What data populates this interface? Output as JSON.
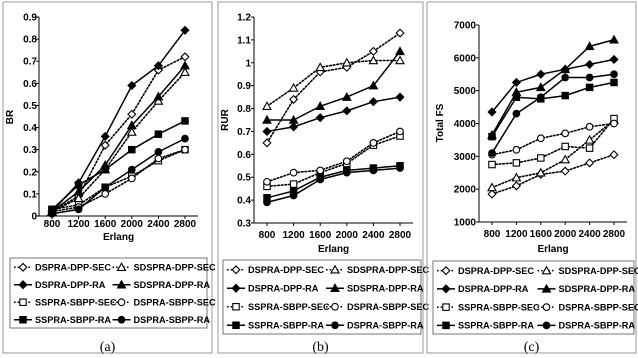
{
  "colors": {
    "line": "#000000",
    "frame": "#9a9a9a",
    "legend_frame": "#555555",
    "background": "#ffffff"
  },
  "chart_data": [
    {
      "type": "line",
      "caption": "(a)",
      "xlabel": "Erlang",
      "ylabel": "BR",
      "x": [
        800,
        1200,
        1600,
        2000,
        2400,
        2800
      ],
      "ylim": [
        0,
        0.9
      ],
      "yticks": [
        "0",
        "0.1",
        "0.2",
        "0.3",
        "0.4",
        "0.5",
        "0.6",
        "0.7",
        "0.8",
        "0.9"
      ],
      "series": [
        {
          "name": "DSPRA-DPP-SEC",
          "marker": "diamond-open",
          "dash": "dot",
          "values": [
            0.02,
            0.09,
            0.32,
            0.46,
            0.66,
            0.72
          ]
        },
        {
          "name": "SDSPRA-DPP-SEC",
          "marker": "triangle-open",
          "dash": "dot",
          "values": [
            0.02,
            0.08,
            0.21,
            0.38,
            0.52,
            0.65
          ]
        },
        {
          "name": "DSPRA-DPP-RA",
          "marker": "diamond",
          "dash": "solid",
          "values": [
            0.02,
            0.15,
            0.36,
            0.59,
            0.68,
            0.84
          ]
        },
        {
          "name": "SDSPRA-DPP-RA",
          "marker": "triangle",
          "dash": "solid",
          "values": [
            0.02,
            0.11,
            0.23,
            0.41,
            0.54,
            0.68
          ]
        },
        {
          "name": "SSPRA-SBPP-SEC",
          "marker": "square-open",
          "dash": "dot",
          "values": [
            0.03,
            0.05,
            0.13,
            0.18,
            0.25,
            0.3
          ]
        },
        {
          "name": "DSPRA-SBPP-SEC",
          "marker": "circle-open",
          "dash": "dot",
          "values": [
            0.02,
            0.04,
            0.1,
            0.17,
            0.26,
            0.3
          ]
        },
        {
          "name": "SSPRA-SBPP-RA",
          "marker": "square",
          "dash": "solid",
          "values": [
            0.03,
            0.14,
            0.21,
            0.3,
            0.37,
            0.43
          ]
        },
        {
          "name": "DSPRA-SBPP-RA",
          "marker": "circle",
          "dash": "solid",
          "values": [
            0.01,
            0.03,
            0.13,
            0.21,
            0.29,
            0.35
          ]
        }
      ]
    },
    {
      "type": "line",
      "caption": "(b)",
      "xlabel": "Erlang",
      "ylabel": "RUR",
      "x": [
        800,
        1200,
        1600,
        2000,
        2400,
        2800
      ],
      "ylim": [
        0.3,
        1.2
      ],
      "yticks": [
        "0.3",
        "0.4",
        "0.5",
        "0.6",
        "0.7",
        "0.8",
        "0.9",
        "1",
        "1.1",
        "1.2"
      ],
      "series": [
        {
          "name": "DSPRA-DPP-SEC",
          "marker": "diamond-open",
          "dash": "dot",
          "values": [
            0.65,
            0.84,
            0.96,
            0.98,
            1.05,
            1.13
          ]
        },
        {
          "name": "SDSPRA-DPP-SEC",
          "marker": "triangle-open",
          "dash": "dot",
          "values": [
            0.81,
            0.89,
            0.98,
            1.0,
            1.01,
            1.01
          ]
        },
        {
          "name": "DSPRA-DPP-RA",
          "marker": "diamond",
          "dash": "solid",
          "values": [
            0.7,
            0.72,
            0.76,
            0.79,
            0.83,
            0.85
          ]
        },
        {
          "name": "SDSPRA-DPP-RA",
          "marker": "triangle",
          "dash": "solid",
          "values": [
            0.75,
            0.75,
            0.81,
            0.85,
            0.9,
            1.05
          ]
        },
        {
          "name": "SSPRA-SBPP-SEC",
          "marker": "square-open",
          "dash": "dot",
          "values": [
            0.46,
            0.47,
            0.52,
            0.56,
            0.64,
            0.68
          ]
        },
        {
          "name": "DSPRA-SBPP-SEC",
          "marker": "circle-open",
          "dash": "dot",
          "values": [
            0.48,
            0.52,
            0.53,
            0.57,
            0.65,
            0.7
          ]
        },
        {
          "name": "SSPRA-SBPP-RA",
          "marker": "square",
          "dash": "solid",
          "values": [
            0.41,
            0.44,
            0.5,
            0.53,
            0.54,
            0.55
          ]
        },
        {
          "name": "DSPRA-SBPP-RA",
          "marker": "circle",
          "dash": "solid",
          "values": [
            0.39,
            0.42,
            0.49,
            0.52,
            0.53,
            0.54
          ]
        }
      ]
    },
    {
      "type": "line",
      "caption": "(c)",
      "xlabel": "Erlang",
      "ylabel": "Total FS",
      "x": [
        800,
        1200,
        1600,
        2000,
        2400,
        2800
      ],
      "ylim": [
        1000,
        7000
      ],
      "yticks": [
        "1000",
        "2000",
        "3000",
        "4000",
        "5000",
        "6000",
        "7000"
      ],
      "series": [
        {
          "name": "DSPRA-DPP-SEC",
          "marker": "diamond-open",
          "dash": "dot",
          "values": [
            1850,
            2100,
            2450,
            2550,
            2800,
            3050
          ]
        },
        {
          "name": "SDSPRA-DPP-SEC",
          "marker": "triangle-open",
          "dash": "dot",
          "values": [
            2050,
            2350,
            2500,
            2900,
            3500,
            4100
          ]
        },
        {
          "name": "DSPRA-DPP-RA",
          "marker": "diamond",
          "dash": "solid",
          "values": [
            4350,
            5250,
            5500,
            5650,
            5800,
            5950
          ]
        },
        {
          "name": "SDSPRA-DPP-RA",
          "marker": "triangle",
          "dash": "solid",
          "values": [
            3650,
            4950,
            5100,
            5650,
            6350,
            6550
          ]
        },
        {
          "name": "SSPRA-SBPP-SEC",
          "marker": "square-open",
          "dash": "dot",
          "values": [
            2750,
            2800,
            2950,
            3300,
            3250,
            4150
          ]
        },
        {
          "name": "DSPRA-SBPP-SEC",
          "marker": "circle-open",
          "dash": "dot",
          "values": [
            3050,
            3200,
            3550,
            3700,
            3900,
            4000
          ]
        },
        {
          "name": "SSPRA-SBPP-RA",
          "marker": "square",
          "dash": "solid",
          "values": [
            3600,
            4800,
            4750,
            4850,
            5100,
            5250
          ]
        },
        {
          "name": "DSPRA-SBPP-RA",
          "marker": "circle",
          "dash": "solid",
          "values": [
            3100,
            4300,
            4800,
            5400,
            5400,
            5500
          ]
        }
      ]
    }
  ]
}
